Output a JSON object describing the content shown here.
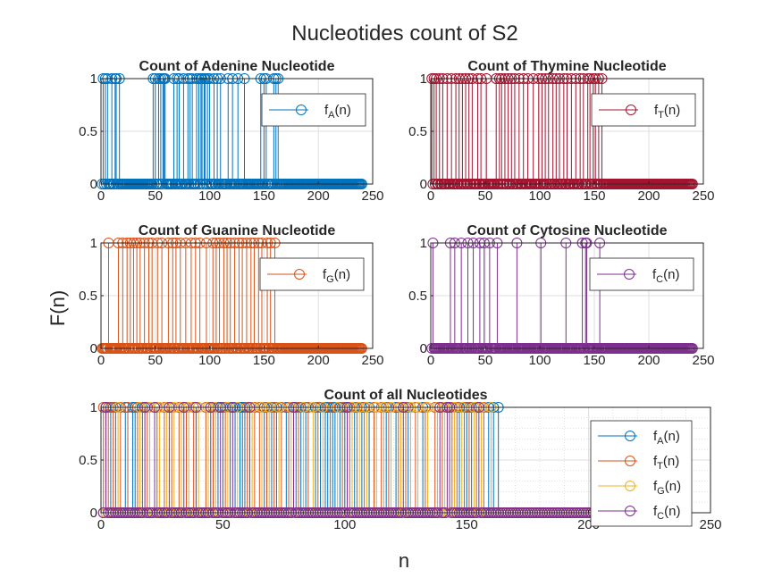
{
  "figure": {
    "title": "Nucleotides count of S2",
    "ylabel": "F(n)",
    "xlabel": "n"
  },
  "colors": {
    "A_sub": "#0072BD",
    "T_sub": "#A2142F",
    "G_sub": "#D95319",
    "C_sub": "#7E2F8E",
    "A_all": "#0072BD",
    "T_all": "#D95319",
    "G_all": "#EDB120",
    "C_all": "#7E2F8E"
  },
  "chart_data": [
    {
      "type": "stem",
      "title": "Count of Adenine Nucleotide",
      "legend": [
        {
          "sub": "A",
          "label": "f_A(n)"
        }
      ],
      "legend_position": "top-right",
      "xlim": [
        0,
        250
      ],
      "ylim": [
        0,
        1
      ],
      "xticks": [
        0,
        50,
        100,
        150,
        200,
        250
      ],
      "yticks": [
        0,
        0.5,
        1
      ],
      "grid": true,
      "n_points": 240,
      "series": [
        {
          "key": "A",
          "ones": [
            2,
            4,
            6,
            10,
            13,
            14,
            17,
            48,
            50,
            53,
            55,
            57,
            58,
            59,
            67,
            70,
            72,
            76,
            80,
            82,
            84,
            88,
            90,
            92,
            93,
            95,
            96,
            98,
            100,
            104,
            107,
            110,
            117,
            121,
            126,
            132,
            147,
            150,
            152,
            159,
            161,
            163
          ]
        }
      ]
    },
    {
      "type": "stem",
      "title": "Count of Thymine Nucleotide",
      "legend": [
        {
          "sub": "T",
          "label": "f_T(n)"
        }
      ],
      "legend_position": "top-right",
      "xlim": [
        0,
        250
      ],
      "ylim": [
        0,
        1
      ],
      "xticks": [
        0,
        50,
        100,
        150,
        200,
        250
      ],
      "yticks": [
        0,
        0.5,
        1
      ],
      "grid": true,
      "n_points": 240,
      "series": [
        {
          "key": "T",
          "ones": [
            1,
            3,
            5,
            8,
            11,
            15,
            19,
            23,
            26,
            29,
            32,
            35,
            38,
            43,
            46,
            51,
            60,
            63,
            65,
            68,
            71,
            74,
            77,
            81,
            85,
            89,
            94,
            99,
            102,
            105,
            108,
            112,
            115,
            118,
            122,
            125,
            129,
            133,
            137,
            140,
            144,
            146,
            149,
            151,
            154,
            157
          ]
        }
      ]
    },
    {
      "type": "stem",
      "title": "Count of Guanine Nucleotide",
      "legend": [
        {
          "sub": "G",
          "label": "f_G(n)"
        }
      ],
      "legend_position": "top-right",
      "xlim": [
        0,
        250
      ],
      "ylim": [
        0,
        1
      ],
      "xticks": [
        0,
        50,
        100,
        150,
        200,
        250
      ],
      "yticks": [
        0,
        0.5,
        1
      ],
      "grid": true,
      "n_points": 240,
      "series": [
        {
          "key": "G",
          "ones": [
            7,
            16,
            20,
            24,
            27,
            30,
            33,
            36,
            40,
            44,
            47,
            52,
            56,
            62,
            66,
            69,
            73,
            78,
            83,
            87,
            91,
            97,
            103,
            106,
            109,
            113,
            116,
            119,
            123,
            127,
            130,
            134,
            138,
            141,
            145,
            148,
            153,
            156,
            160
          ]
        }
      ]
    },
    {
      "type": "stem",
      "title": "Count of Cytosine Nucleotide",
      "legend": [
        {
          "sub": "C",
          "label": "f_C(n)"
        }
      ],
      "legend_position": "top-right",
      "xlim": [
        0,
        250
      ],
      "ylim": [
        0,
        1
      ],
      "xticks": [
        0,
        50,
        100,
        150,
        200,
        250
      ],
      "yticks": [
        0,
        0.5,
        1
      ],
      "grid": true,
      "n_points": 240,
      "series": [
        {
          "key": "C",
          "ones": [
            2,
            18,
            22,
            28,
            34,
            39,
            45,
            49,
            54,
            61,
            79,
            101,
            124,
            139,
            142,
            143,
            155
          ]
        }
      ]
    },
    {
      "type": "stem",
      "title": "Count of all Nucleotides",
      "legend": [
        {
          "sub": "A",
          "label": "f_A(n)"
        },
        {
          "sub": "T",
          "label": "f_T(n)"
        },
        {
          "sub": "G",
          "label": "f_G(n)"
        },
        {
          "sub": "C",
          "label": "f_C(n)"
        }
      ],
      "legend_position": "bottom-right",
      "xlim": [
        0,
        250
      ],
      "ylim": [
        0,
        1
      ],
      "xticks": [
        0,
        50,
        100,
        150,
        200,
        250
      ],
      "yticks": [
        0,
        0.5,
        1
      ],
      "grid": true,
      "minor_grid": true,
      "n_points": 240,
      "series": [
        {
          "key": "A",
          "ones": [
            2,
            4,
            6,
            10,
            13,
            14,
            17,
            48,
            50,
            53,
            55,
            57,
            58,
            59,
            67,
            70,
            72,
            76,
            80,
            82,
            84,
            88,
            90,
            92,
            93,
            95,
            96,
            98,
            100,
            104,
            107,
            110,
            117,
            121,
            126,
            132,
            147,
            150,
            152,
            159,
            161,
            163
          ]
        },
        {
          "key": "T",
          "ones": [
            1,
            3,
            5,
            8,
            11,
            15,
            19,
            23,
            26,
            29,
            32,
            35,
            38,
            43,
            46,
            51,
            60,
            63,
            65,
            68,
            71,
            74,
            77,
            81,
            85,
            89,
            94,
            99,
            102,
            105,
            108,
            112,
            115,
            118,
            122,
            125,
            129,
            133,
            137,
            140,
            144,
            146,
            149,
            151,
            154,
            157
          ]
        },
        {
          "key": "G",
          "ones": [
            7,
            16,
            20,
            24,
            27,
            30,
            33,
            36,
            40,
            44,
            47,
            52,
            56,
            62,
            66,
            69,
            73,
            78,
            83,
            87,
            91,
            97,
            103,
            106,
            109,
            113,
            116,
            119,
            123,
            127,
            130,
            134,
            138,
            141,
            145,
            148,
            153,
            156,
            160
          ]
        },
        {
          "key": "C",
          "ones": [
            2,
            18,
            22,
            28,
            34,
            39,
            45,
            49,
            54,
            61,
            79,
            101,
            124,
            139,
            142,
            143,
            155
          ]
        }
      ]
    }
  ]
}
